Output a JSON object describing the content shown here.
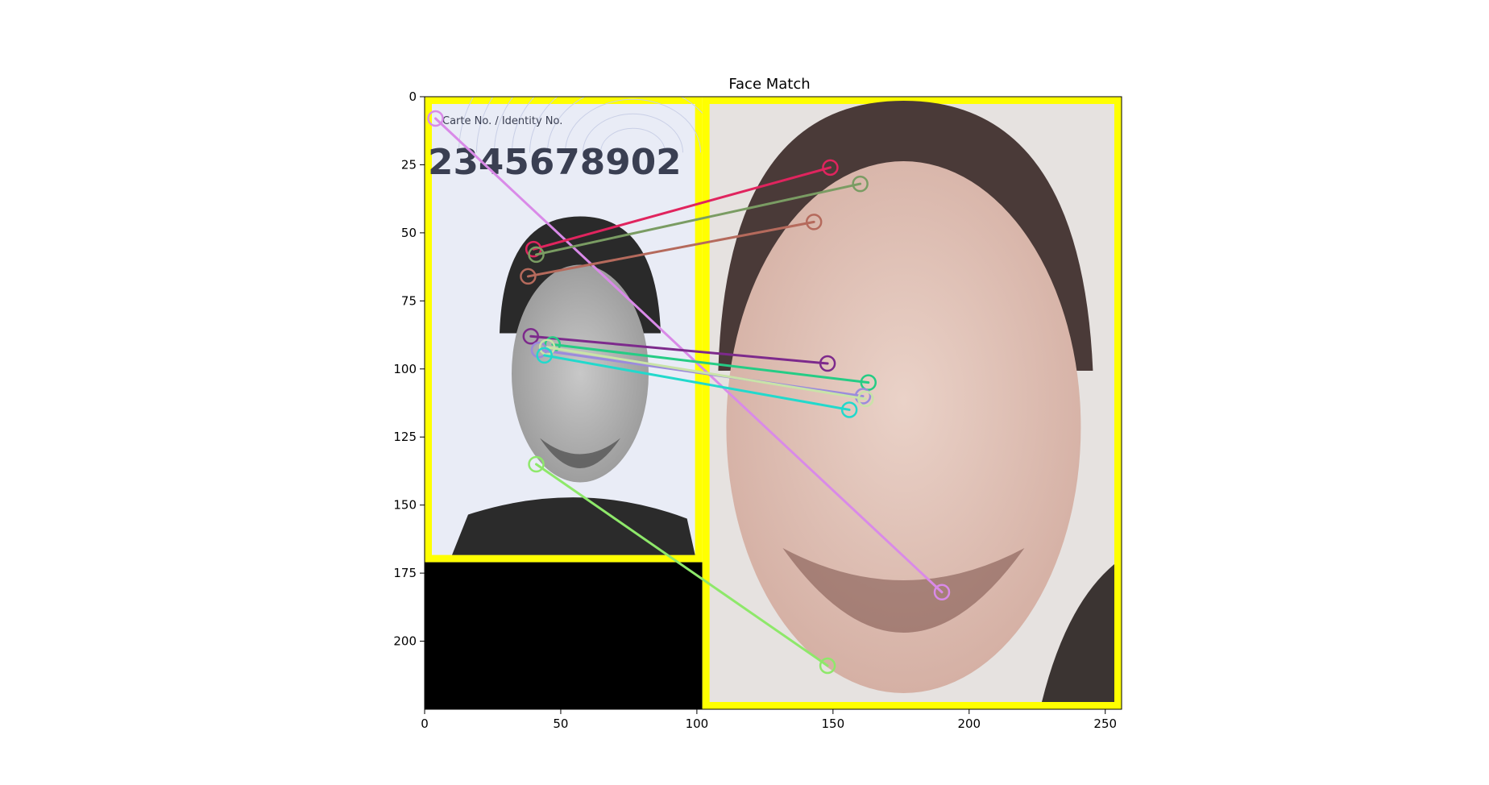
{
  "chart_data": {
    "type": "scatter",
    "title": "Face Match",
    "xlim": [
      0,
      256
    ],
    "ylim": [
      225,
      0
    ],
    "y_inverted": true,
    "grid": false,
    "xticks": [
      0,
      50,
      100,
      150,
      200,
      250
    ],
    "yticks": [
      0,
      25,
      50,
      75,
      100,
      125,
      150,
      175,
      200
    ],
    "images": {
      "left": {
        "x": [
          0,
          102
        ],
        "y": [
          0,
          171
        ],
        "frame_color": "#ffff00",
        "description": "ID card photo"
      },
      "right": {
        "x": [
          102,
          256
        ],
        "y": [
          0,
          225
        ],
        "frame_color": "#ffff00",
        "description": "selfie photo"
      },
      "padding": {
        "x": [
          0,
          102
        ],
        "y": [
          171,
          225
        ],
        "color": "#000000"
      }
    },
    "id_card_text": {
      "caption": "Carte No. / Identity No.",
      "number": "2345678902"
    },
    "matches": [
      {
        "x1": 4,
        "y1": 8,
        "x2": 190,
        "y2": 182,
        "color": "#d98ae8"
      },
      {
        "x1": 40,
        "y1": 56,
        "x2": 149,
        "y2": 26,
        "color": "#e0245e"
      },
      {
        "x1": 41,
        "y1": 58,
        "x2": 160,
        "y2": 32,
        "color": "#7a9c63"
      },
      {
        "x1": 38,
        "y1": 66,
        "x2": 143,
        "y2": 46,
        "color": "#b56a5c"
      },
      {
        "x1": 39,
        "y1": 88,
        "x2": 148,
        "y2": 98,
        "color": "#7d2a8c"
      },
      {
        "x1": 47,
        "y1": 91,
        "x2": 163,
        "y2": 105,
        "color": "#25cc85"
      },
      {
        "x1": 42,
        "y1": 93,
        "x2": 161,
        "y2": 110,
        "color": "#9b8bdc"
      },
      {
        "x1": 45,
        "y1": 92,
        "x2": 162,
        "y2": 111,
        "color": "#c9e3a8"
      },
      {
        "x1": 44,
        "y1": 95,
        "x2": 156,
        "y2": 115,
        "color": "#22d9cc"
      },
      {
        "x1": 41,
        "y1": 135,
        "x2": 148,
        "y2": 209,
        "color": "#8ee86a"
      }
    ]
  }
}
